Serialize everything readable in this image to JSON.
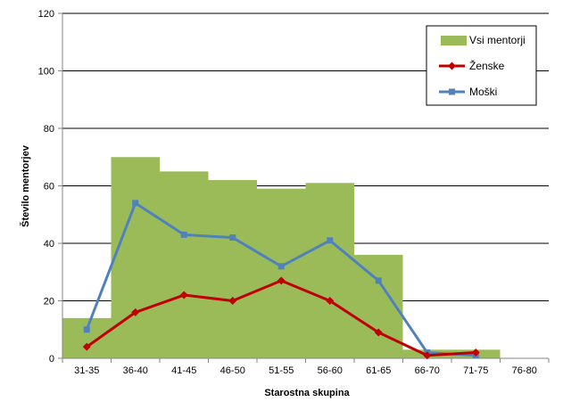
{
  "chart_data": {
    "type": "bar",
    "categories": [
      "31-35",
      "36-40",
      "41-45",
      "46-50",
      "51-55",
      "56-60",
      "61-65",
      "66-70",
      "71-75",
      "76-80"
    ],
    "xlabel": "Starostna skupina",
    "ylabel": "Število mentorjev",
    "ylim": [
      0,
      120
    ],
    "yticks": [
      0,
      20,
      40,
      60,
      80,
      100,
      120
    ],
    "grid": true,
    "legend_position": "top-right",
    "series": [
      {
        "name": "Vsi mentorji",
        "kind": "bar",
        "color": "#9bbb59",
        "values": [
          14,
          70,
          65,
          62,
          59,
          61,
          36,
          3,
          3,
          0
        ]
      },
      {
        "name": "Ženske",
        "kind": "line",
        "marker": "diamond",
        "color": "#c00000",
        "values": [
          4,
          16,
          22,
          20,
          27,
          20,
          9,
          1,
          2,
          null
        ]
      },
      {
        "name": "Moški",
        "kind": "line",
        "marker": "square",
        "color": "#4f81bd",
        "values": [
          10,
          54,
          43,
          42,
          32,
          41,
          27,
          2,
          1,
          null
        ]
      }
    ]
  }
}
